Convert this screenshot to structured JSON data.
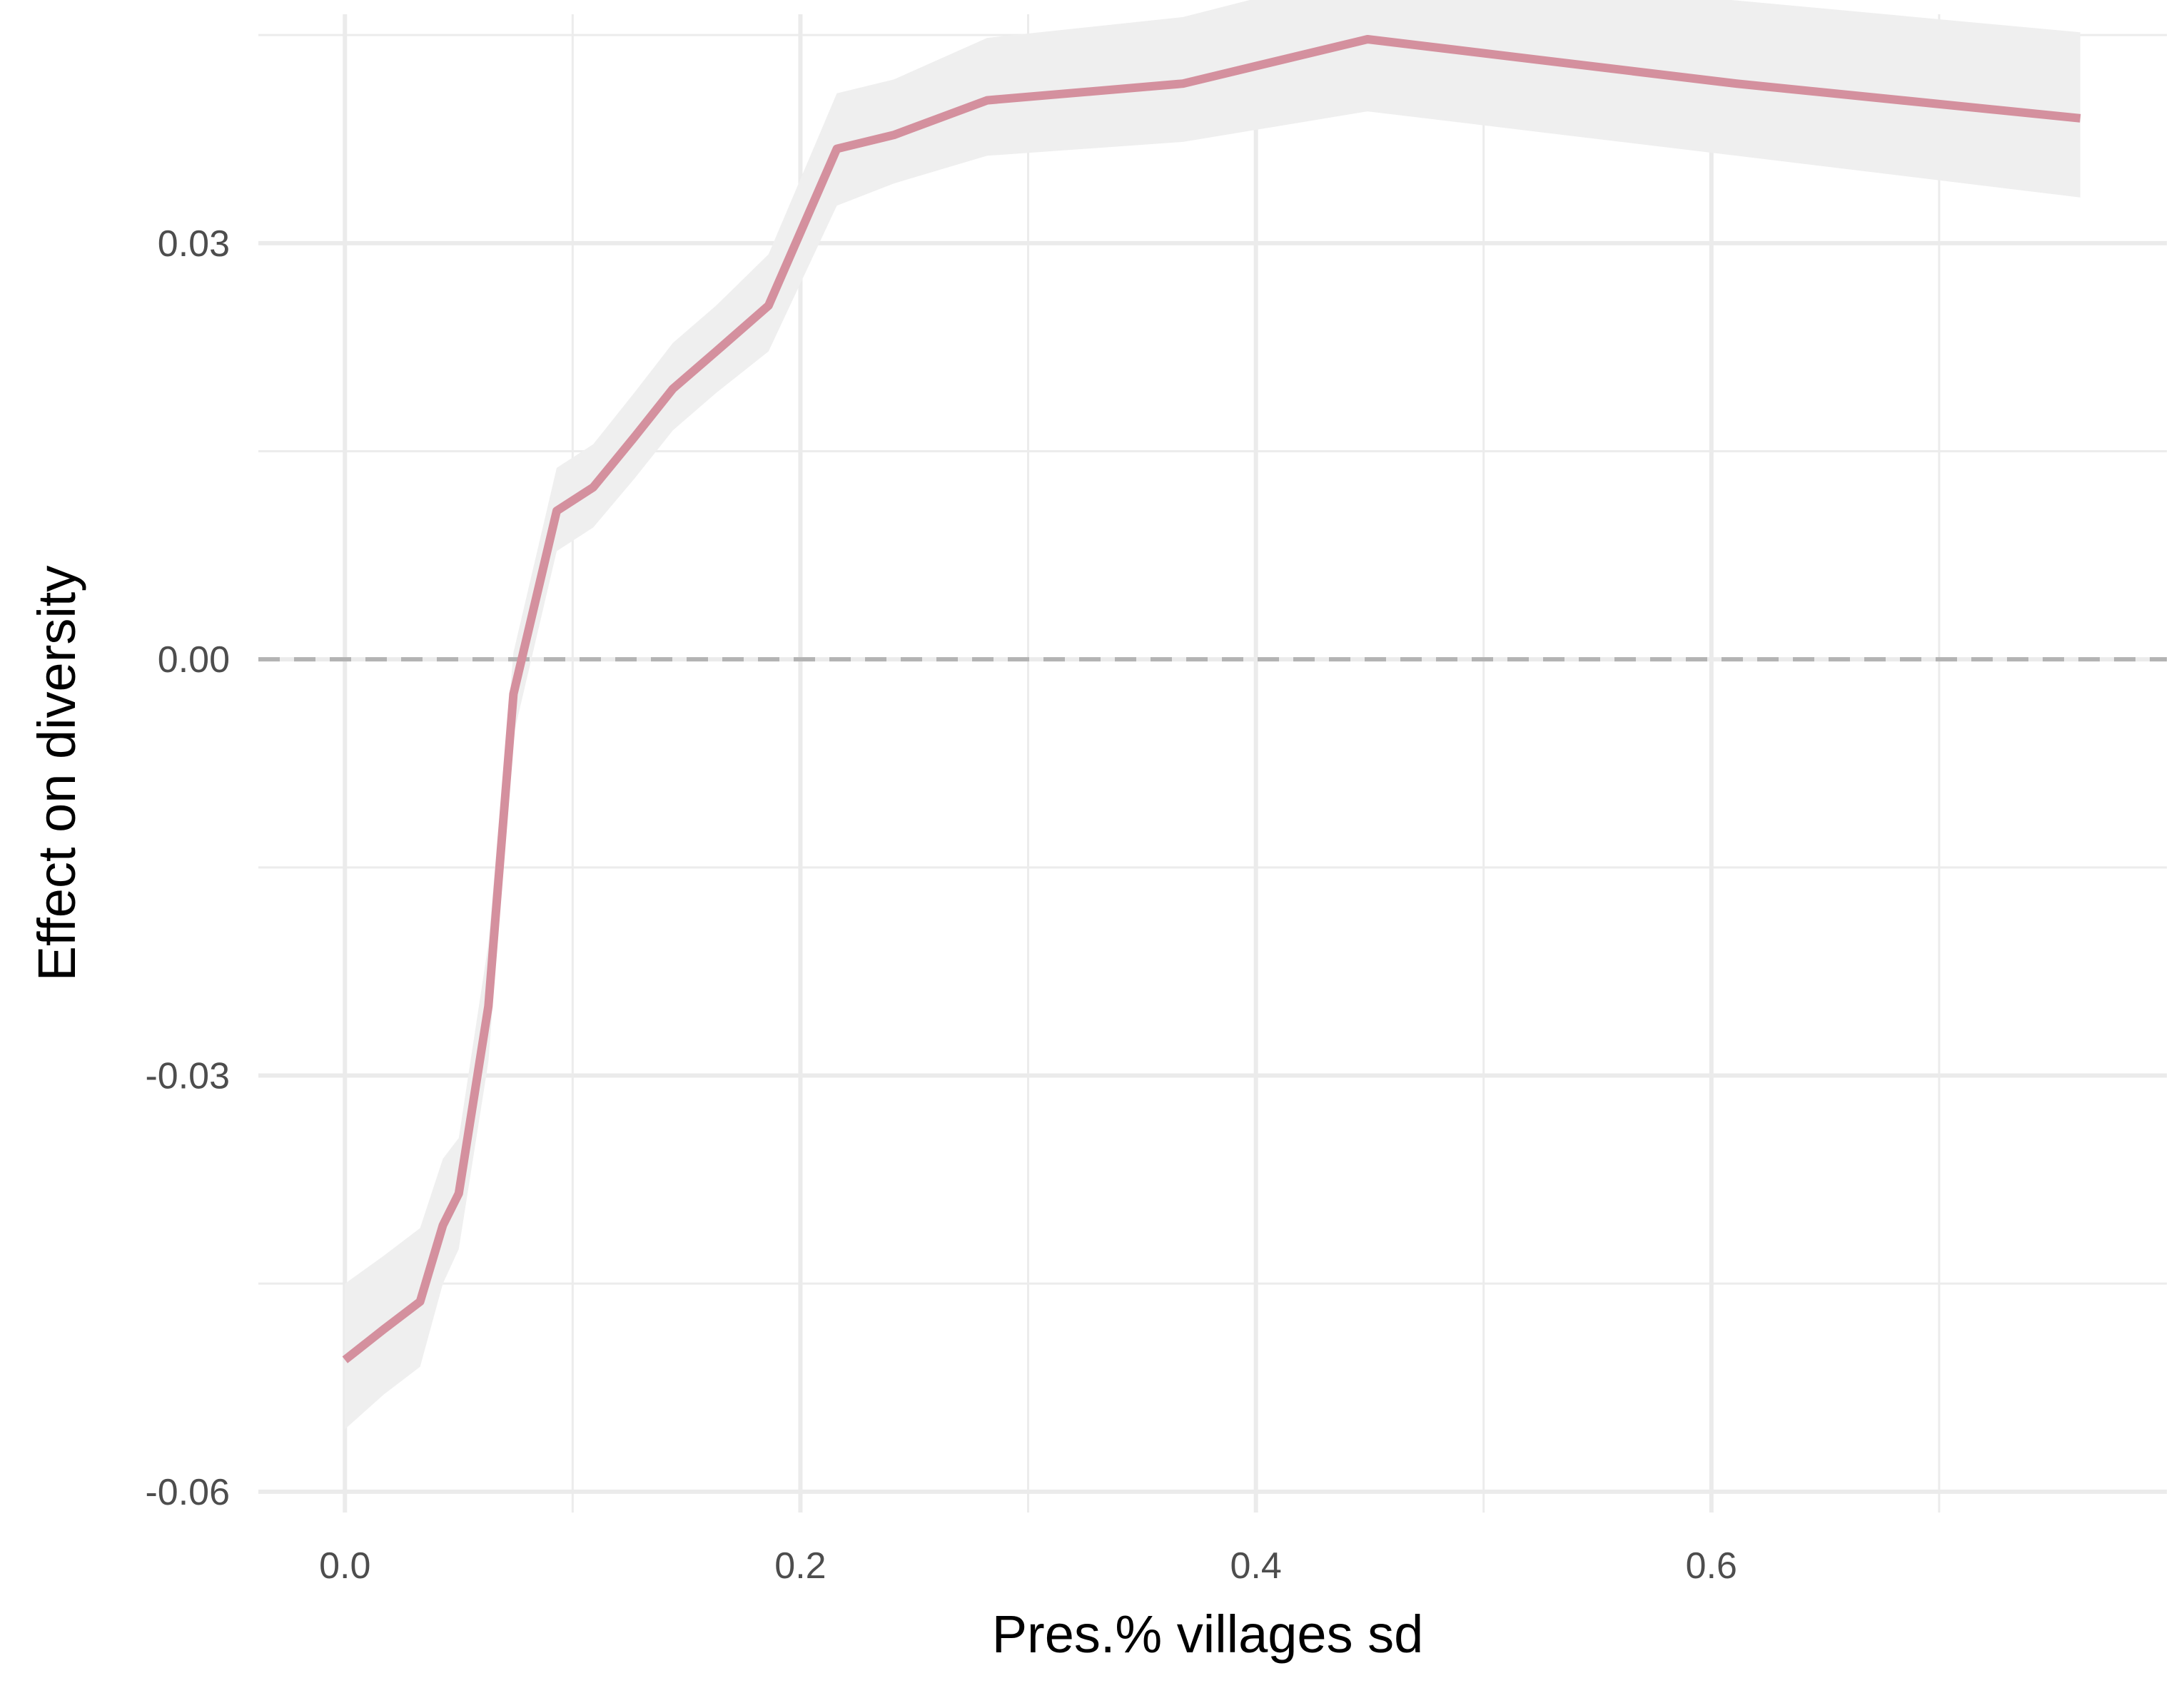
{
  "chart_data": {
    "type": "line",
    "title": "",
    "xlabel": "Pres.% villages sd",
    "ylabel": "Effect on diversity",
    "xlim": [
      -0.038,
      0.8
    ],
    "ylim": [
      -0.0615,
      0.0465
    ],
    "x_ticks": [
      0.0,
      0.2,
      0.4,
      0.6
    ],
    "x_tick_labels": [
      "0.0",
      "0.2",
      "0.4",
      "0.6"
    ],
    "y_ticks": [
      -0.06,
      -0.03,
      0.0,
      0.03
    ],
    "y_tick_labels": [
      "-0.06",
      "-0.03",
      "0.00",
      "0.03"
    ],
    "grid": true,
    "reference_line": {
      "y": 0.0,
      "style": "dashed",
      "color": "#b3b3b3"
    },
    "line_color": "#d4909e",
    "band_color": "#efefef",
    "x": [
      0.0,
      0.017,
      0.033,
      0.043,
      0.05,
      0.063,
      0.074,
      0.093,
      0.109,
      0.127,
      0.144,
      0.163,
      0.186,
      0.216,
      0.241,
      0.282,
      0.368,
      0.449,
      0.611,
      0.762
    ],
    "y": [
      -0.0505,
      -0.0483,
      -0.0463,
      -0.0408,
      -0.0385,
      -0.025,
      -0.0025,
      0.0107,
      0.0124,
      0.016,
      0.0195,
      0.0222,
      0.0255,
      0.0368,
      0.0378,
      0.0403,
      0.0415,
      0.0447,
      0.0415,
      0.039
    ],
    "lower": [
      -0.0555,
      -0.053,
      -0.051,
      -0.045,
      -0.0425,
      -0.029,
      -0.0055,
      0.0078,
      0.0095,
      0.013,
      0.0165,
      0.0192,
      0.0222,
      0.0327,
      0.0343,
      0.0363,
      0.0373,
      0.0395,
      0.0363,
      0.0333
    ],
    "upper": [
      -0.045,
      -0.043,
      -0.041,
      -0.036,
      -0.0345,
      -0.0205,
      0.0005,
      0.0138,
      0.0155,
      0.0192,
      0.0228,
      0.0255,
      0.0292,
      0.0408,
      0.0418,
      0.0448,
      0.0463,
      0.0497,
      0.0475,
      0.0452
    ]
  }
}
